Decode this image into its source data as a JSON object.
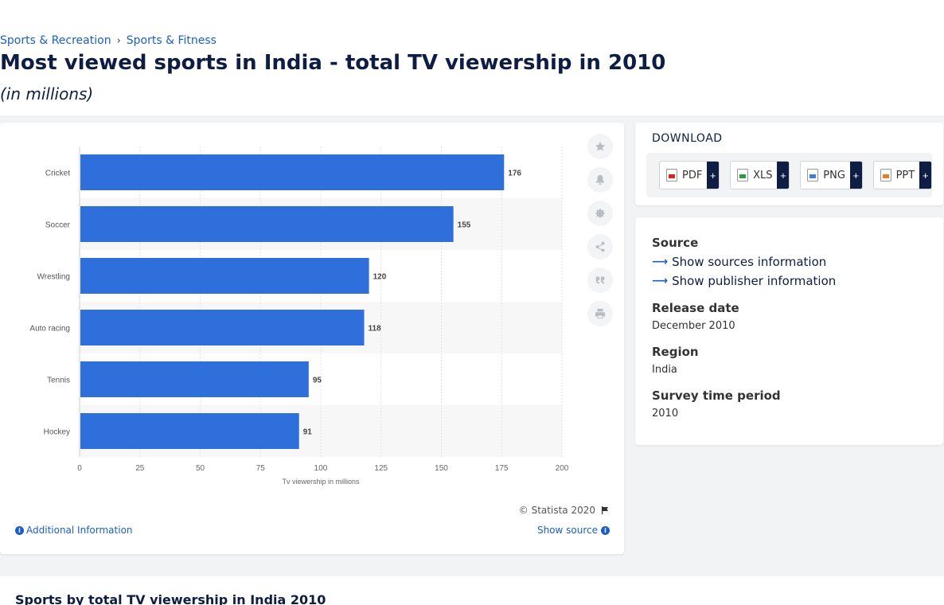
{
  "breadcrumb": {
    "items": [
      "Sports & Recreation",
      "Sports & Fitness"
    ],
    "separator": "›"
  },
  "header": {
    "title": "Most viewed sports in India - total TV viewership in 2010",
    "subtitle": "(in millions)"
  },
  "chart_data": {
    "type": "bar",
    "orientation": "horizontal",
    "categories": [
      "Cricket",
      "Soccer",
      "Wrestling",
      "Auto racing",
      "Tennis",
      "Hockey"
    ],
    "values": [
      176,
      155,
      120,
      118,
      95,
      91
    ],
    "xlabel": "Tv viewership in millions",
    "xlim": [
      0,
      200
    ],
    "x_ticks": [
      0,
      25,
      50,
      75,
      100,
      125,
      150,
      175,
      200
    ],
    "grid": true,
    "bar_color": "#2f6fdc"
  },
  "chart_footer": {
    "copyright": "© Statista 2020",
    "additional_info": "Additional Information",
    "show_source": "Show source"
  },
  "tools": [
    "star-icon",
    "bell-icon",
    "gear-icon",
    "share-icon",
    "quote-icon",
    "print-icon"
  ],
  "download": {
    "title": "DOWNLOAD",
    "buttons": [
      {
        "label": "PDF",
        "icon": "pdf-file-icon"
      },
      {
        "label": "XLS",
        "icon": "xls-file-icon"
      },
      {
        "label": "PNG",
        "icon": "png-file-icon"
      },
      {
        "label": "PPT",
        "icon": "ppt-file-icon"
      }
    ],
    "plus": "+"
  },
  "source_panel": {
    "source_heading": "Source",
    "show_sources": "Show sources information",
    "show_publisher": "Show publisher information",
    "release_heading": "Release date",
    "release_value": "December 2010",
    "region_heading": "Region",
    "region_value": "India",
    "survey_heading": "Survey time period",
    "survey_value": "2010"
  },
  "related": {
    "title": "Sports by total TV viewership in India 2010"
  }
}
